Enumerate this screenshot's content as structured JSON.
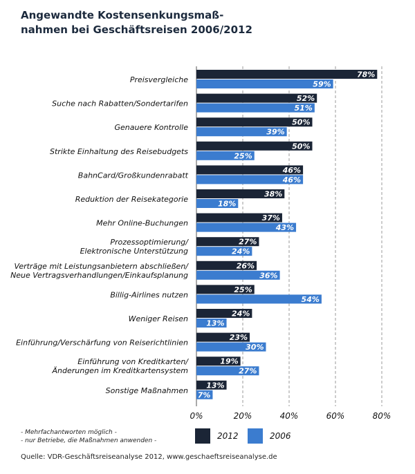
{
  "title_lines": [
    "Angewandte Kostensenkungsmaß-",
    "nahmen bei Geschäftsreisen 2006/2012"
  ],
  "notes": [
    "- Mehrfachantworten möglich -",
    "- nur Betriebe, die Maßnahmen anwenden -"
  ],
  "source": "Quelle: VDR-Geschäftsreiseanalyse 2012, www.geschaeftsreiseanalyse.de",
  "colors": {
    "s2012": "#1b2536",
    "s2006": "#3b7ccf",
    "grid": "#9a9a9a"
  },
  "chart_data": {
    "type": "bar",
    "orientation": "horizontal",
    "categories": [
      [
        "Preisvergleiche"
      ],
      [
        "Suche nach Rabatten/Sondertarifen"
      ],
      [
        "Genauere Kontrolle"
      ],
      [
        "Strikte Einhaltung des Reisebudgets"
      ],
      [
        "BahnCard/Großkundenrabatt"
      ],
      [
        "Reduktion der Reisekategorie"
      ],
      [
        "Mehr Online-Buchungen"
      ],
      [
        "Prozessoptimierung/",
        "Elektronische Unterstützung"
      ],
      [
        "Verträge mit Leistungsanbietern abschließen/",
        "Neue Vertragsverhandlungen/Einkaufsplanung"
      ],
      [
        "Billig-Airlines nutzen"
      ],
      [
        "Weniger Reisen"
      ],
      [
        "Einführung/Verschärfung von Reiserichtlinien"
      ],
      [
        "Einführung von Kreditkarten/",
        "Änderungen im Kreditkartensystem"
      ],
      [
        "Sonstige Maßnahmen"
      ]
    ],
    "series": [
      {
        "name": "2012",
        "values": [
          78,
          52,
          50,
          50,
          46,
          38,
          37,
          27,
          26,
          25,
          24,
          23,
          19,
          13
        ]
      },
      {
        "name": "2006",
        "values": [
          59,
          51,
          39,
          25,
          46,
          18,
          43,
          24,
          36,
          54,
          13,
          30,
          27,
          7
        ]
      }
    ],
    "value_suffix": "%",
    "xlim": [
      0,
      80
    ],
    "xticks": [
      "0%",
      "20%",
      "40%",
      "60%",
      "80%"
    ],
    "xtick_values": [
      0,
      20,
      40,
      60,
      80
    ],
    "grid": true,
    "legend": "bottom"
  }
}
